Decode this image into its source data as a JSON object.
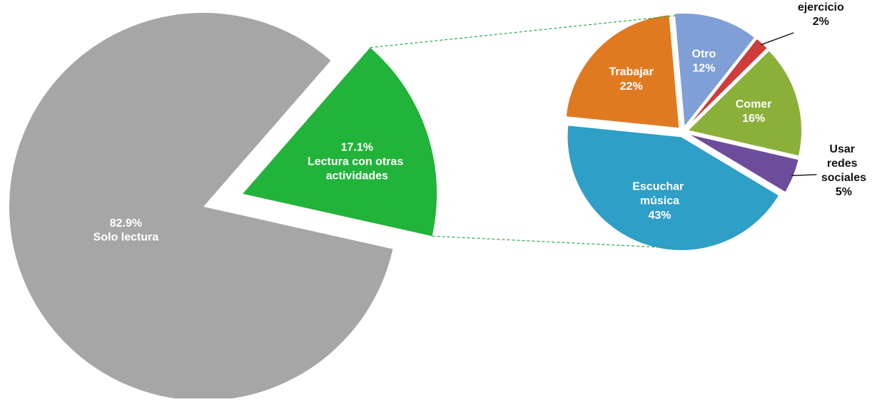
{
  "chart_data": [
    {
      "type": "pie",
      "categories": [
        "Solo lectura",
        "Lectura con otras actividades"
      ],
      "values": [
        82.9,
        17.1
      ],
      "value_labels": [
        "82.9%",
        "17.1%"
      ],
      "colors": [
        "#a6a6a6",
        "#22b33a"
      ]
    },
    {
      "type": "pie",
      "categories": [
        "Otro",
        "Hacer ejercicio",
        "Comer",
        "Usar redes sociales",
        "Escuchar música",
        "Trabajar"
      ],
      "values": [
        12,
        2,
        16,
        5,
        43,
        22
      ],
      "value_labels": [
        "12%",
        "2%",
        "16%",
        "5%",
        "43%",
        "22%"
      ],
      "colors": [
        "#7f9fd6",
        "#d03b3b",
        "#8bb03a",
        "#6d4c9c",
        "#2e9fc6",
        "#e07a20"
      ]
    }
  ]
}
